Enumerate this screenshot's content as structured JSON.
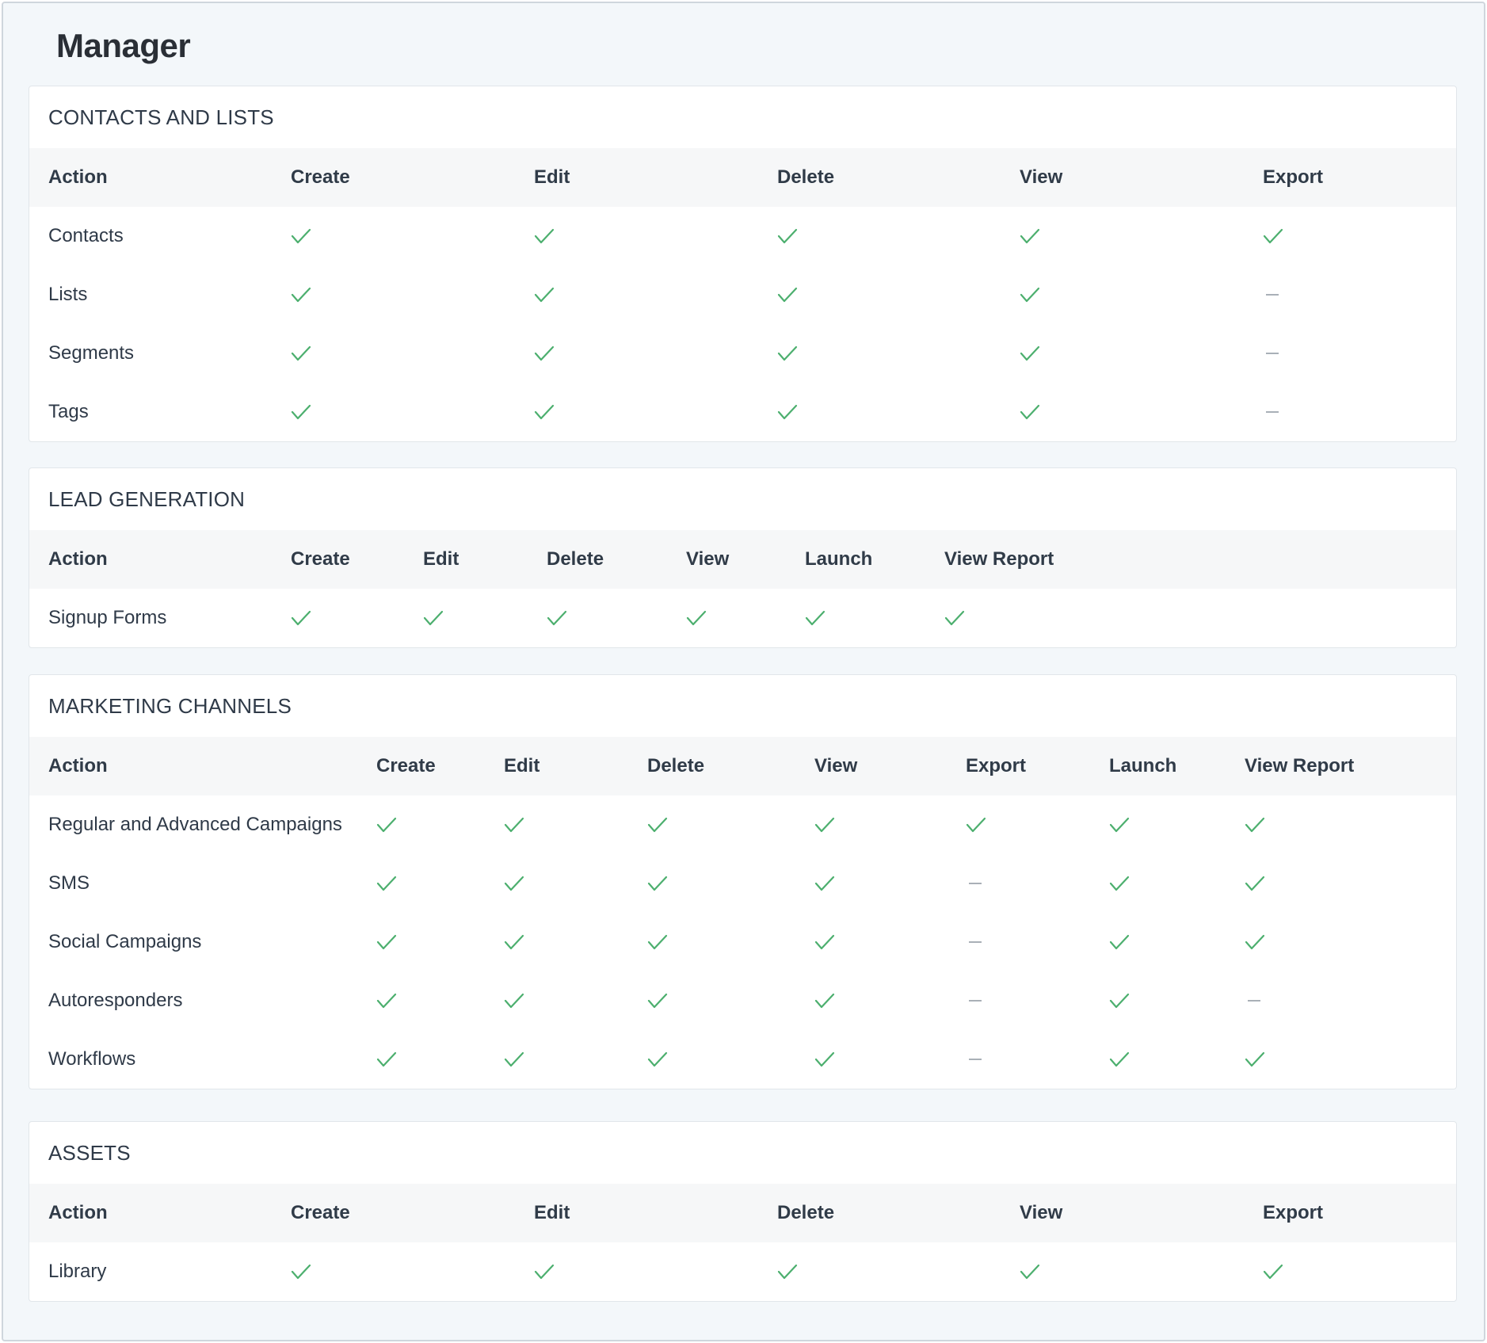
{
  "page": {
    "title": "Manager"
  },
  "colors": {
    "check": "#4caf6e",
    "dash": "#a9b0b7",
    "header_bg": "#f6f7f8",
    "page_bg": "#f3f7fa"
  },
  "icons": {
    "yes": "check-icon",
    "no": "dash-icon"
  },
  "sections": [
    {
      "id": "contacts-and-lists",
      "title": "CONTACTS AND LISTS",
      "columns": [
        "Action",
        "Create",
        "Edit",
        "Delete",
        "View",
        "Export"
      ],
      "rows": [
        {
          "label": "Contacts",
          "values": [
            true,
            true,
            true,
            true,
            true
          ]
        },
        {
          "label": "Lists",
          "values": [
            true,
            true,
            true,
            true,
            false
          ]
        },
        {
          "label": "Segments",
          "values": [
            true,
            true,
            true,
            true,
            false
          ]
        },
        {
          "label": "Tags",
          "values": [
            true,
            true,
            true,
            true,
            false
          ]
        }
      ]
    },
    {
      "id": "lead-generation",
      "title": "LEAD GENERATION",
      "columns": [
        "Action",
        "Create",
        "Edit",
        "Delete",
        "View",
        "Launch",
        "View Report"
      ],
      "rows": [
        {
          "label": "Signup Forms",
          "values": [
            true,
            true,
            true,
            true,
            true,
            true
          ]
        }
      ]
    },
    {
      "id": "marketing-channels",
      "title": "MARKETING CHANNELS",
      "columns": [
        "Action",
        "Create",
        "Edit",
        "Delete",
        "View",
        "Export",
        "Launch",
        "View Report"
      ],
      "rows": [
        {
          "label": "Regular and Advanced Campaigns",
          "values": [
            true,
            true,
            true,
            true,
            true,
            true,
            true
          ]
        },
        {
          "label": "SMS",
          "values": [
            true,
            true,
            true,
            true,
            false,
            true,
            true
          ]
        },
        {
          "label": "Social Campaigns",
          "values": [
            true,
            true,
            true,
            true,
            false,
            true,
            true
          ]
        },
        {
          "label": "Autoresponders",
          "values": [
            true,
            true,
            true,
            true,
            false,
            true,
            false
          ]
        },
        {
          "label": "Workflows",
          "values": [
            true,
            true,
            true,
            true,
            false,
            true,
            true
          ]
        }
      ]
    },
    {
      "id": "assets",
      "title": "ASSETS",
      "columns": [
        "Action",
        "Create",
        "Edit",
        "Delete",
        "View",
        "Export"
      ],
      "rows": [
        {
          "label": "Library",
          "values": [
            true,
            true,
            true,
            true,
            true
          ]
        }
      ]
    }
  ]
}
